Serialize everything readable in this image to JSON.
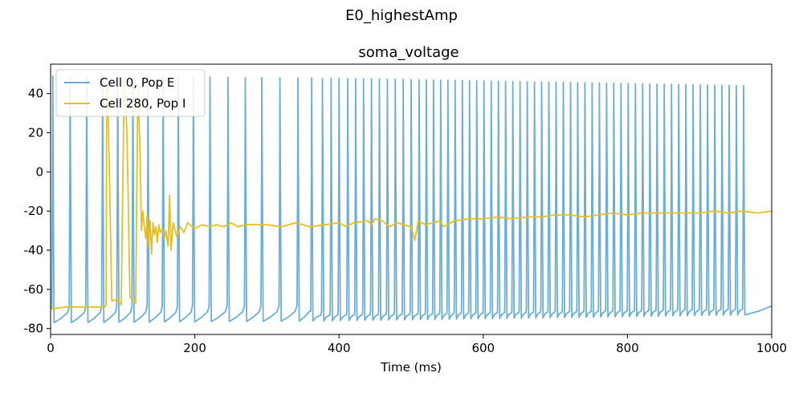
{
  "chart_data": {
    "type": "line",
    "suptitle": "E0_highestAmp",
    "title": "soma_voltage",
    "xlabel": "Time (ms)",
    "ylabel": "",
    "xlim": [
      0,
      1000
    ],
    "ylim": [
      -83,
      55
    ],
    "xticks": [
      0,
      200,
      400,
      600,
      800,
      1000
    ],
    "yticks": [
      -80,
      -60,
      -40,
      -20,
      0,
      20,
      40
    ],
    "grid": false,
    "legend_position": "top-left",
    "series": [
      {
        "name": "Cell 0, Pop E",
        "color": "#6baed6",
        "spike_times": [
          3,
          27,
          50,
          72,
          93,
          114,
          135,
          156,
          177,
          198,
          221,
          246,
          270,
          293,
          318,
          343,
          362,
          377,
          389,
          400,
          412,
          423,
          434,
          445,
          456,
          467,
          478,
          489,
          500,
          511,
          521,
          531,
          541,
          551,
          561,
          571,
          581,
          591,
          601,
          611,
          621,
          631,
          641,
          651,
          661,
          671,
          681,
          691,
          701,
          711,
          721,
          731,
          741,
          751,
          761,
          771,
          781,
          791,
          801,
          811,
          821,
          831,
          841,
          851,
          861,
          871,
          881,
          891,
          901,
          911,
          921,
          931,
          941,
          951,
          961
        ],
        "spike_peak_start": 49,
        "spike_peak_end": 44,
        "trough_start": -77,
        "trough_end": -73
      },
      {
        "name": "Cell 280, Pop I",
        "color": "#e6c020",
        "values": [
          [
            0,
            -70
          ],
          [
            20,
            -69
          ],
          [
            75,
            -69
          ],
          [
            77,
            -68
          ],
          [
            78,
            45
          ],
          [
            80,
            30
          ],
          [
            85,
            -66
          ],
          [
            92,
            -65
          ],
          [
            98,
            -68
          ],
          [
            102,
            47
          ],
          [
            106,
            20
          ],
          [
            110,
            -64
          ],
          [
            118,
            -67
          ],
          [
            121,
            45
          ],
          [
            124,
            10
          ],
          [
            126,
            -30
          ],
          [
            128,
            -20
          ],
          [
            130,
            -28
          ],
          [
            132,
            -34
          ],
          [
            134,
            -22
          ],
          [
            136,
            -38
          ],
          [
            138,
            -25
          ],
          [
            140,
            -42
          ],
          [
            142,
            -26
          ],
          [
            144,
            -32
          ],
          [
            146,
            -28
          ],
          [
            148,
            -36
          ],
          [
            150,
            -27
          ],
          [
            152,
            -31
          ],
          [
            155,
            -29
          ],
          [
            158,
            -34
          ],
          [
            160,
            -30
          ],
          [
            163,
            -38
          ],
          [
            165,
            -12
          ],
          [
            167,
            -40
          ],
          [
            170,
            -26
          ],
          [
            175,
            -33
          ],
          [
            180,
            -28
          ],
          [
            185,
            -31
          ],
          [
            190,
            -26
          ],
          [
            200,
            -29
          ],
          [
            210,
            -27
          ],
          [
            220,
            -28
          ],
          [
            230,
            -27
          ],
          [
            240,
            -28
          ],
          [
            250,
            -26
          ],
          [
            260,
            -28
          ],
          [
            270,
            -27
          ],
          [
            280,
            -27
          ],
          [
            300,
            -27
          ],
          [
            320,
            -28
          ],
          [
            340,
            -26
          ],
          [
            360,
            -28
          ],
          [
            380,
            -27
          ],
          [
            400,
            -26
          ],
          [
            410,
            -28
          ],
          [
            420,
            -26
          ],
          [
            440,
            -25
          ],
          [
            445,
            -27
          ],
          [
            450,
            -24
          ],
          [
            460,
            -25
          ],
          [
            470,
            -28
          ],
          [
            480,
            -26
          ],
          [
            490,
            -27
          ],
          [
            500,
            -28
          ],
          [
            505,
            -35
          ],
          [
            510,
            -25
          ],
          [
            520,
            -27
          ],
          [
            530,
            -26
          ],
          [
            540,
            -25
          ],
          [
            545,
            -28
          ],
          [
            560,
            -25
          ],
          [
            580,
            -24
          ],
          [
            600,
            -24
          ],
          [
            620,
            -23
          ],
          [
            640,
            -24
          ],
          [
            660,
            -23
          ],
          [
            680,
            -23
          ],
          [
            700,
            -22
          ],
          [
            720,
            -22
          ],
          [
            740,
            -23
          ],
          [
            760,
            -22
          ],
          [
            780,
            -21
          ],
          [
            800,
            -22
          ],
          [
            820,
            -21
          ],
          [
            840,
            -21
          ],
          [
            860,
            -21
          ],
          [
            880,
            -21
          ],
          [
            900,
            -21
          ],
          [
            920,
            -20
          ],
          [
            940,
            -21
          ],
          [
            960,
            -20
          ],
          [
            980,
            -21
          ],
          [
            1000,
            -20
          ]
        ]
      }
    ]
  }
}
